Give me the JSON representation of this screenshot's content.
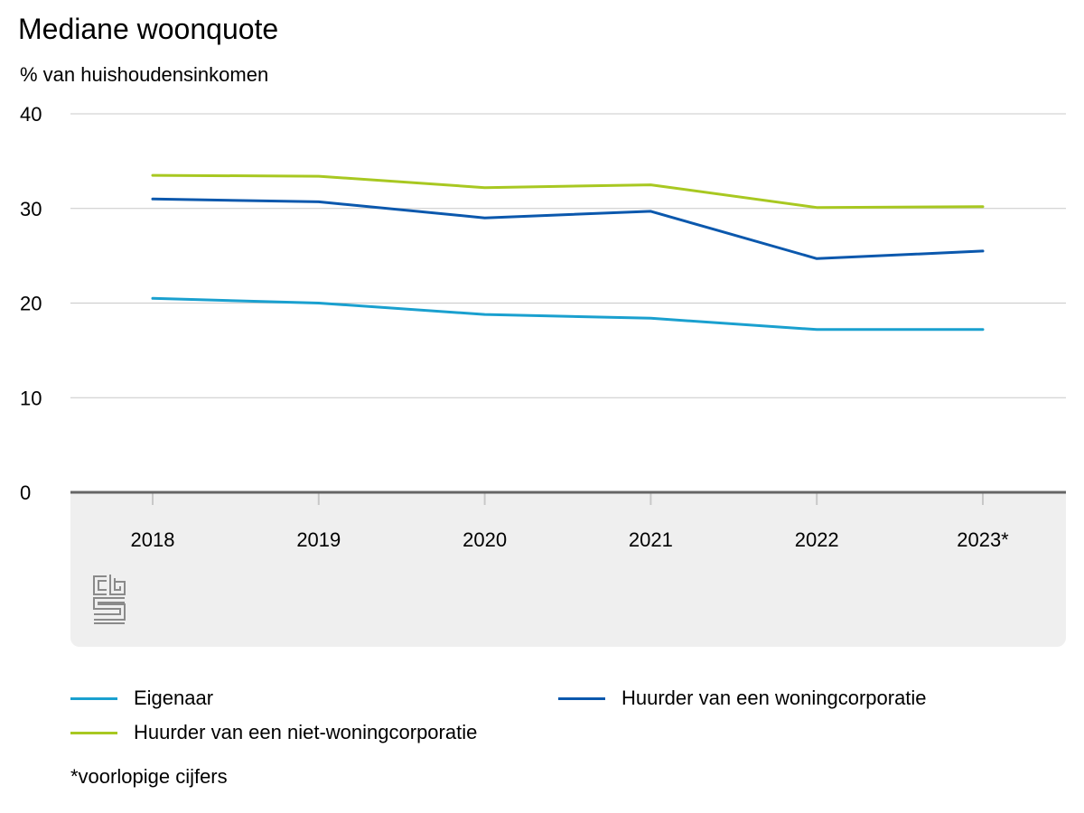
{
  "chart_data": {
    "type": "line",
    "title": "Mediane woonquote",
    "ylabel": "% van huishoudensinkomen",
    "xlabel": "",
    "categories": [
      "2018",
      "2019",
      "2020",
      "2021",
      "2022",
      "2023*"
    ],
    "ylim": [
      0,
      40
    ],
    "yticks": [
      0,
      10,
      20,
      30,
      40
    ],
    "grid": true,
    "legend_position": "bottom",
    "series": [
      {
        "name": "Eigenaar",
        "color": "#1aa0cf",
        "values": [
          20.5,
          20.0,
          18.8,
          18.4,
          17.2,
          17.2
        ]
      },
      {
        "name": "Huurder van een woningcorporatie",
        "color": "#0b58ad",
        "values": [
          31.0,
          30.7,
          29.0,
          29.7,
          24.7,
          25.5
        ]
      },
      {
        "name": "Huurder van een niet-woningcorporatie",
        "color": "#a8c821",
        "values": [
          33.5,
          33.4,
          32.2,
          32.5,
          30.1,
          30.2
        ]
      }
    ],
    "footnote": "*voorlopige cijfers"
  },
  "logo": {
    "icon": "cbs-logo-icon"
  }
}
